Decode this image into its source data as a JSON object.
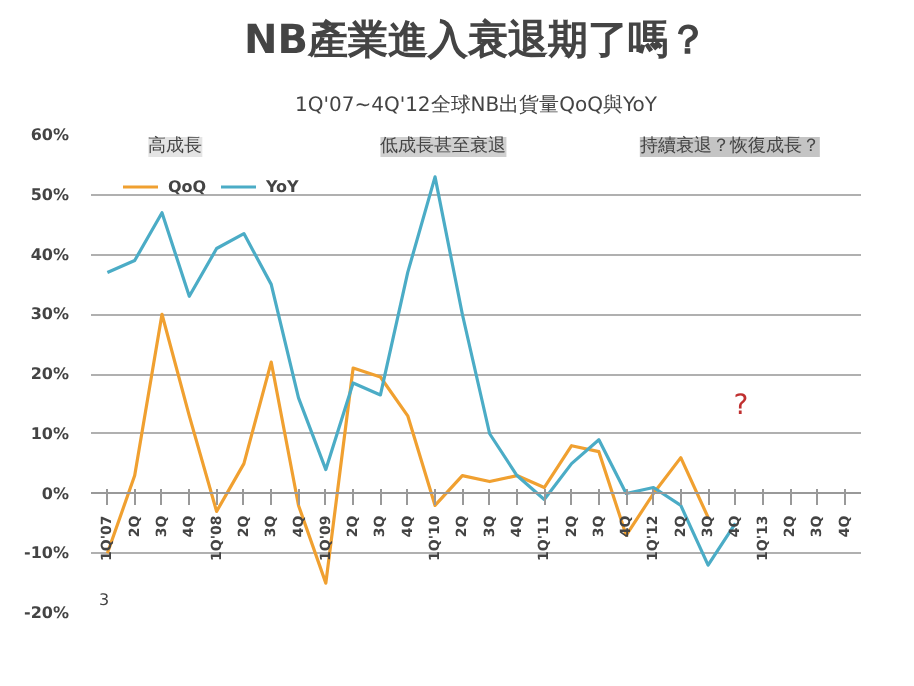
{
  "chart_data": {
    "type": "line",
    "title": "NB產業進入衰退期了嗎？",
    "subtitle": "1Q'07~4Q'12全球NB出貨量QoQ與YoY",
    "categories": [
      "1Q'07",
      "2Q",
      "3Q",
      "4Q",
      "1Q'08",
      "2Q",
      "3Q",
      "4Q",
      "1Q'09",
      "2Q",
      "3Q",
      "4Q",
      "1Q'10",
      "2Q",
      "3Q",
      "4Q",
      "1Q'11",
      "2Q",
      "3Q",
      "4Q",
      "1Q'12",
      "2Q",
      "3Q",
      "4Q",
      "1Q'13",
      "2Q",
      "3Q",
      "4Q"
    ],
    "series": [
      {
        "name": "QoQ",
        "color": "#f0a030",
        "values": [
          -10,
          3,
          30,
          13,
          -3,
          5,
          22,
          -2,
          -15,
          21,
          19.5,
          13,
          -2,
          3,
          2,
          3,
          1,
          8,
          7,
          -7,
          0,
          6,
          -4,
          null,
          null,
          null,
          null,
          null
        ]
      },
      {
        "name": "YoY",
        "color": "#4bacc6",
        "values": [
          37,
          39,
          47,
          33,
          41,
          43.5,
          35,
          16,
          4,
          18.5,
          16.5,
          37,
          53,
          30,
          10,
          3,
          -1,
          5,
          9,
          0,
          1,
          -2,
          -12,
          -5,
          null,
          null,
          null,
          null
        ]
      }
    ],
    "ylim": [
      -20,
      60
    ],
    "yticks": [
      {
        "value": -20,
        "label": "-20%"
      },
      {
        "value": -10,
        "label": "-10%"
      },
      {
        "value": 0,
        "label": "0%"
      },
      {
        "value": 10,
        "label": "10%"
      },
      {
        "value": 20,
        "label": "20%"
      },
      {
        "value": 30,
        "label": "30%"
      },
      {
        "value": 40,
        "label": "40%"
      },
      {
        "value": 50,
        "label": "50%"
      },
      {
        "value": 60,
        "label": "60%"
      }
    ],
    "grid": "y",
    "legend": "top left",
    "annotations": [
      "高成長",
      "低成長甚至衰退",
      "持續衰退？恢復成長？",
      "?",
      "3"
    ]
  }
}
